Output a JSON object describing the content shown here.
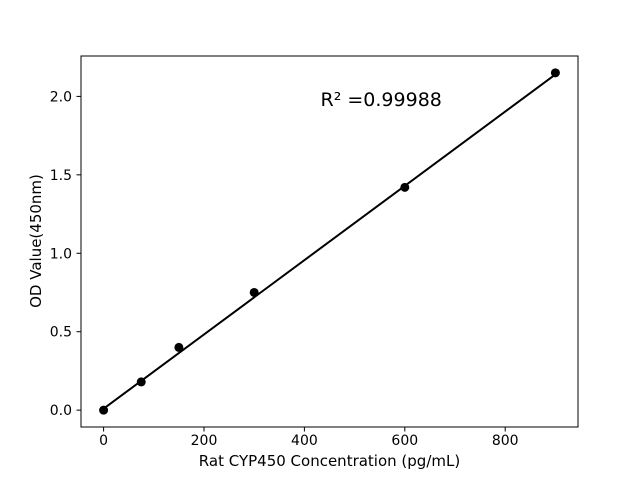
{
  "chart_data": {
    "type": "scatter",
    "title": "",
    "xlabel": "Rat CYP450 Concentration (pg/mL)",
    "ylabel": "OD Value(450nm)",
    "points": {
      "x": [
        0,
        75,
        150,
        300,
        600,
        900
      ],
      "y": [
        0.0,
        0.18,
        0.4,
        0.75,
        1.42,
        2.15
      ]
    },
    "fit_line": {
      "x0": 0,
      "y0": 0.009,
      "x1": 900,
      "y1": 2.14
    },
    "r_squared": 0.99988,
    "annotation": {
      "text": "R² =0.99988",
      "x": 553,
      "y": 1.98
    },
    "x_ticks": {
      "values": [
        0,
        200,
        400,
        600,
        800
      ],
      "labels": [
        "0",
        "200",
        "400",
        "600",
        "800"
      ]
    },
    "y_ticks": {
      "values": [
        0,
        0.5,
        1.0,
        1.5,
        2.0
      ],
      "labels": [
        "0.0",
        "0.5",
        "1.0",
        "1.5",
        "2.0"
      ]
    },
    "xlim": [
      -45,
      945
    ],
    "ylim": [
      -0.1075,
      2.2575
    ],
    "grid": false,
    "legend": null,
    "colors": {
      "marker": "#000000",
      "line": "#000000",
      "axes": "#000000",
      "tick_label": "#000000",
      "background": "#ffffff"
    }
  }
}
